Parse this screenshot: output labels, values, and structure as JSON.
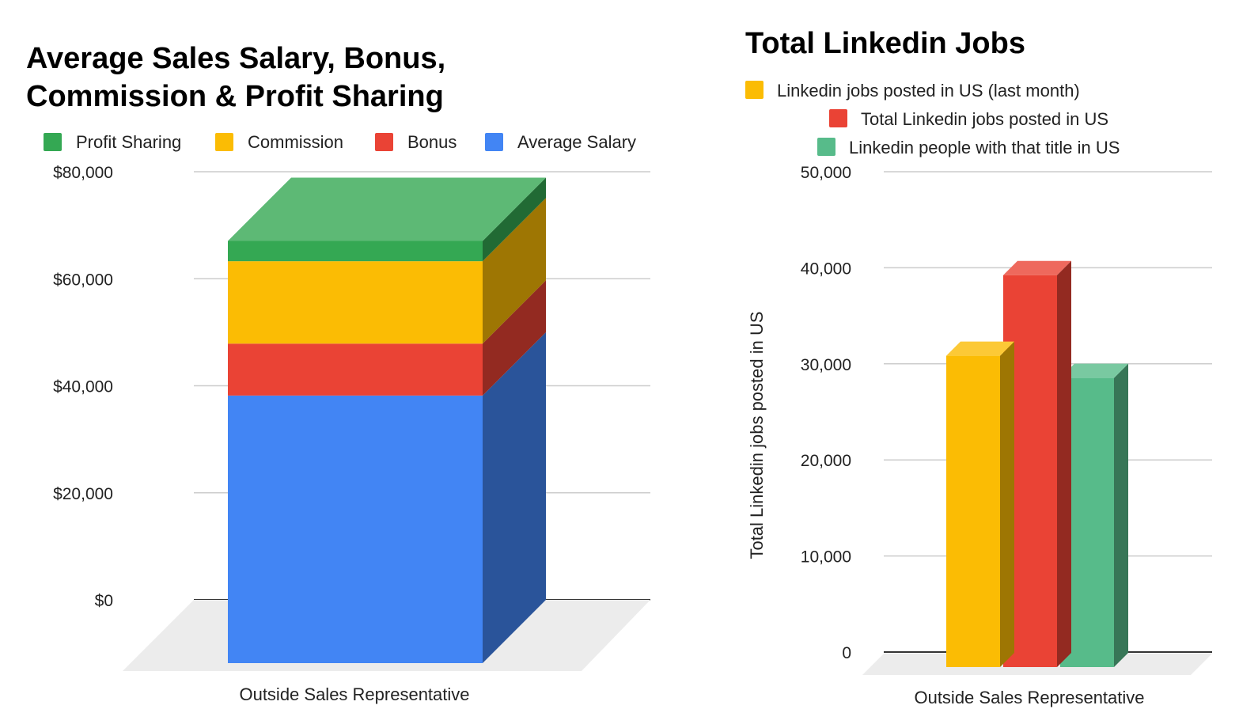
{
  "chart_data": [
    {
      "type": "bar",
      "stacked": true,
      "style": "3d",
      "title_lines": [
        "Average Sales Salary, Bonus,",
        "Commission & Profit Sharing"
      ],
      "categories": [
        "Outside Sales Representative"
      ],
      "series": [
        {
          "name": "Average Salary",
          "values": [
            50000
          ],
          "color": "#4285f4"
        },
        {
          "name": "Bonus",
          "values": [
            9700
          ],
          "color": "#ea4335"
        },
        {
          "name": "Commission",
          "values": [
            15400
          ],
          "color": "#fbbc04"
        },
        {
          "name": "Profit Sharing",
          "values": [
            3800
          ],
          "color": "#34a853"
        }
      ],
      "legend_order": [
        "Profit Sharing",
        "Commission",
        "Bonus",
        "Average Salary"
      ],
      "legend_position": "top",
      "ylim": [
        0,
        80000
      ],
      "yticks": [
        "$0",
        "$20,000",
        "$40,000",
        "$60,000",
        "$80,000"
      ],
      "xlabel": "",
      "ylabel": "",
      "grid": true
    },
    {
      "type": "bar",
      "style": "3d",
      "title": "Total Linkedin Jobs",
      "categories": [
        "Outside Sales Representative"
      ],
      "series": [
        {
          "name": "Linkedin jobs posted in US (last month)",
          "values": [
            32400
          ],
          "color": "#fbbc04"
        },
        {
          "name": "Total Linkedin jobs posted in US",
          "values": [
            40800
          ],
          "color": "#ea4335"
        },
        {
          "name": "Linkedin people with that title in US",
          "values": [
            30100
          ],
          "color": "#57bb8a"
        }
      ],
      "legend_position": "top",
      "ylim": [
        0,
        50000
      ],
      "yticks": [
        "0",
        "10,000",
        "20,000",
        "30,000",
        "40,000",
        "50,000"
      ],
      "xlabel": "",
      "ylabel": "Total Linkedin jobs posted in US",
      "grid": true
    }
  ]
}
